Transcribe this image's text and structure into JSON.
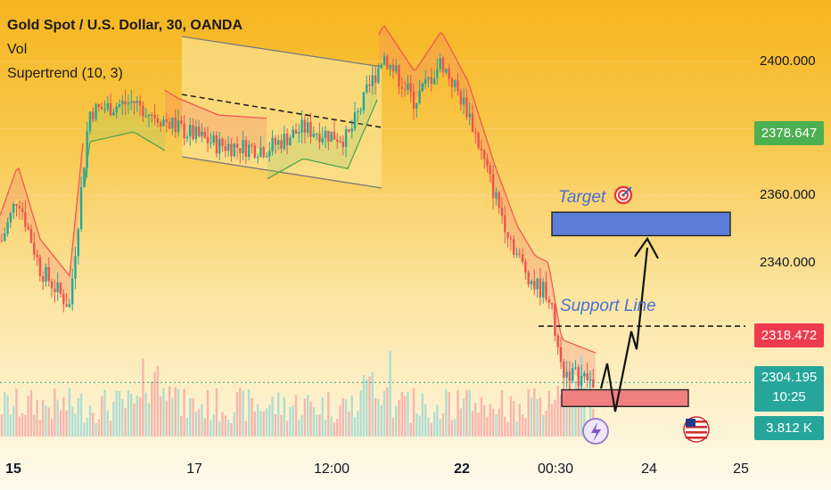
{
  "legend": {
    "title": "Gold Spot / U.S. Dollar, 30, OANDA",
    "volume_label": "Vol",
    "indicator": "Supertrend (10, 3)"
  },
  "price_axis": {
    "ticks": [
      "2400.000",
      "2360.000",
      "2340.000"
    ],
    "labels": [
      {
        "value": "2378.647",
        "color": "#4caf50"
      },
      {
        "value": "2318.472",
        "color": "#ef3b4f"
      }
    ],
    "current": {
      "price": "2304.195",
      "countdown": "10:25",
      "color": "#26a69a"
    },
    "volume": {
      "value": "3.812 K",
      "color": "#26a69a"
    }
  },
  "time_axis": {
    "ticks": [
      {
        "label": "15",
        "bold": true
      },
      {
        "label": "17",
        "bold": false
      },
      {
        "label": "12:00",
        "bold": false
      },
      {
        "label": "22",
        "bold": true
      },
      {
        "label": "00:30",
        "bold": false
      },
      {
        "label": "24",
        "bold": false
      },
      {
        "label": "25",
        "bold": false
      }
    ]
  },
  "annotations": {
    "target": "Target",
    "target_icon": "dart-target-icon",
    "support": "Support Line",
    "event_icons": [
      "lightning-icon",
      "us-flag-icon"
    ]
  },
  "colors": {
    "up": "#26a69a",
    "down": "#ef5350",
    "target_zone": "#5b7fd9",
    "support_zone": "#f08080",
    "channel": "#fbe59a"
  },
  "chart_data": {
    "type": "candlestick",
    "symbol": "Gold Spot / U.S. Dollar",
    "interval": "30",
    "source": "OANDA",
    "indicators": [
      "Vol",
      "Supertrend (10, 3)"
    ],
    "y_range": [
      2295,
      2413
    ],
    "price_path": [
      [
        "15",
        2345
      ],
      [
        "15",
        2360
      ],
      [
        "15",
        2338
      ],
      [
        "15",
        2327
      ],
      [
        "15",
        2385
      ],
      [
        "17",
        2388
      ],
      [
        "17",
        2380
      ],
      [
        "17",
        2375
      ],
      [
        "17",
        2374
      ],
      [
        "12:00",
        2380
      ],
      [
        "12:00",
        2377
      ],
      [
        "12:00",
        2402
      ],
      [
        "12:00",
        2388
      ],
      [
        "22",
        2400
      ],
      [
        "22",
        2385
      ],
      [
        "22",
        2360
      ],
      [
        "22",
        2342
      ],
      [
        "00:30",
        2333
      ],
      [
        "00:30",
        2331
      ],
      [
        "00:30",
        2308
      ],
      [
        "00:30",
        2304
      ]
    ],
    "price_labels": [
      2378.647,
      2318.472,
      2304.195
    ],
    "current_price": 2304.195,
    "current_volume": "3.812 K",
    "zones": [
      {
        "name": "Target",
        "from": 2348,
        "to": 2355
      },
      {
        "name": "Support Line",
        "level": 2321
      },
      {
        "name": "support-zone",
        "from": 2297,
        "to": 2302
      }
    ]
  }
}
